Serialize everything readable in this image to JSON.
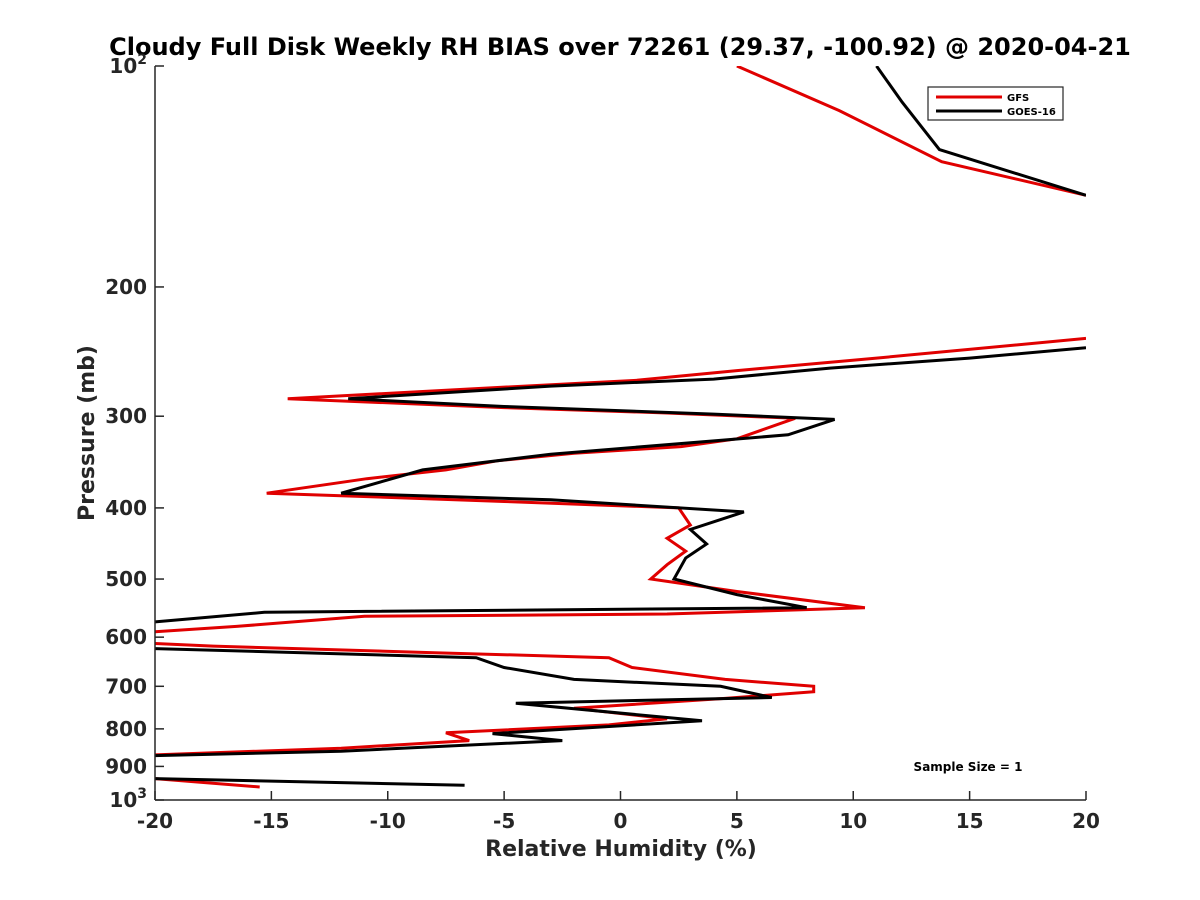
{
  "chart_data": {
    "type": "line",
    "title": "Cloudy Full Disk Weekly RH BIAS over 72261 (29.37, -100.92) @ 2020-04-21",
    "xlabel": "Relative Humidity (%)",
    "ylabel": "Pressure (mb)",
    "xlim": [
      -20,
      20
    ],
    "ylim": [
      100,
      1000
    ],
    "y_scale": "log",
    "y_reversed": true,
    "x_ticks": [
      -20,
      -15,
      -10,
      -5,
      0,
      5,
      10,
      15,
      20
    ],
    "x_tick_labels": [
      "-20",
      "-15",
      "-10",
      "-5",
      "0",
      "5",
      "10",
      "15",
      "20"
    ],
    "y_ticks": [
      100,
      200,
      300,
      400,
      500,
      600,
      700,
      800,
      900,
      1000
    ],
    "y_tick_labels": [
      {
        "base": "10",
        "exp": "2"
      },
      {
        "base": "200",
        "exp": ""
      },
      {
        "base": "300",
        "exp": ""
      },
      {
        "base": "400",
        "exp": ""
      },
      {
        "base": "500",
        "exp": ""
      },
      {
        "base": "600",
        "exp": ""
      },
      {
        "base": "700",
        "exp": ""
      },
      {
        "base": "800",
        "exp": ""
      },
      {
        "base": "900",
        "exp": ""
      },
      {
        "base": "10",
        "exp": "3"
      }
    ],
    "grid": false,
    "legend_position": "top-right",
    "annotation": "Sample Size = 1",
    "series": [
      {
        "name": "GFS",
        "color": "#e00000",
        "segments": [
          [
            [
              5.0,
              100
            ],
            [
              9.4,
              115
            ],
            [
              13.8,
              135
            ],
            [
              20.0,
              150
            ]
          ],
          [
            [
              20.0,
              235
            ],
            [
              11.0,
              250
            ],
            [
              5.0,
              260
            ],
            [
              0.7,
              268
            ],
            [
              -7.0,
              276
            ],
            [
              -14.3,
              284
            ],
            [
              -5.0,
              292
            ],
            [
              2.0,
              297
            ],
            [
              7.5,
              302
            ],
            [
              5.0,
              322
            ],
            [
              2.6,
              330
            ],
            [
              -2.0,
              337
            ],
            [
              -5.3,
              345
            ],
            [
              -7.5,
              355
            ],
            [
              -10.9,
              365
            ],
            [
              -15.2,
              382
            ],
            [
              -12.0,
              385
            ],
            [
              -5.0,
              392
            ],
            [
              2.5,
              400
            ],
            [
              3.0,
              422
            ],
            [
              2.0,
              440
            ],
            [
              2.8,
              458
            ],
            [
              2.0,
              478
            ],
            [
              1.3,
              500
            ],
            [
              5.0,
              520
            ],
            [
              10.5,
              547
            ],
            [
              2.0,
              558
            ],
            [
              -11.0,
              562
            ],
            [
              -16.5,
              580
            ],
            [
              -20.0,
              590
            ]
          ],
          [
            [
              -20.0,
              612
            ],
            [
              -17.5,
              617
            ],
            [
              -8.0,
              630
            ],
            [
              -0.5,
              640
            ],
            [
              0.5,
              660
            ],
            [
              4.5,
              685
            ],
            [
              8.3,
              700
            ],
            [
              8.3,
              712
            ],
            [
              4.5,
              727
            ],
            [
              -2.0,
              750
            ],
            [
              2.0,
              775
            ],
            [
              -0.5,
              790
            ],
            [
              -7.5,
              810
            ],
            [
              -6.5,
              830
            ],
            [
              -12.0,
              850
            ],
            [
              -20.0,
              868
            ]
          ],
          [
            [
              -20.0,
              935
            ],
            [
              -15.5,
              960
            ]
          ]
        ]
      },
      {
        "name": "GOES-16",
        "color": "#000000",
        "segments": [
          [
            [
              11.0,
              100
            ],
            [
              12.1,
              112
            ],
            [
              13.7,
              130
            ],
            [
              20.0,
              150
            ]
          ],
          [
            [
              20.0,
              242
            ],
            [
              15.0,
              250
            ],
            [
              9.0,
              258
            ],
            [
              4.0,
              267
            ],
            [
              -3.0,
              273
            ],
            [
              -11.7,
              284
            ],
            [
              -5.0,
              291
            ],
            [
              4.0,
              298
            ],
            [
              9.2,
              303
            ],
            [
              7.2,
              318
            ],
            [
              -3.0,
              338
            ],
            [
              -8.5,
              355
            ],
            [
              -12.0,
              382
            ],
            [
              -3.0,
              390
            ],
            [
              5.3,
              405
            ],
            [
              3.0,
              428
            ],
            [
              3.7,
              448
            ],
            [
              2.8,
              468
            ],
            [
              2.3,
              500
            ],
            [
              5.0,
              525
            ],
            [
              8.0,
              547
            ],
            [
              -15.3,
              555
            ],
            [
              -20.0,
              572
            ]
          ],
          [
            [
              -20.0,
              622
            ],
            [
              -6.2,
              640
            ],
            [
              -5.0,
              660
            ],
            [
              -2.0,
              685
            ],
            [
              4.3,
              700
            ],
            [
              6.5,
              725
            ],
            [
              -4.5,
              738
            ],
            [
              3.5,
              780
            ],
            [
              -5.5,
              812
            ],
            [
              -2.5,
              830
            ],
            [
              -12.0,
              858
            ],
            [
              -20.0,
              870
            ]
          ],
          [
            [
              -20.0,
              935
            ],
            [
              -6.7,
              955
            ]
          ]
        ]
      }
    ]
  }
}
